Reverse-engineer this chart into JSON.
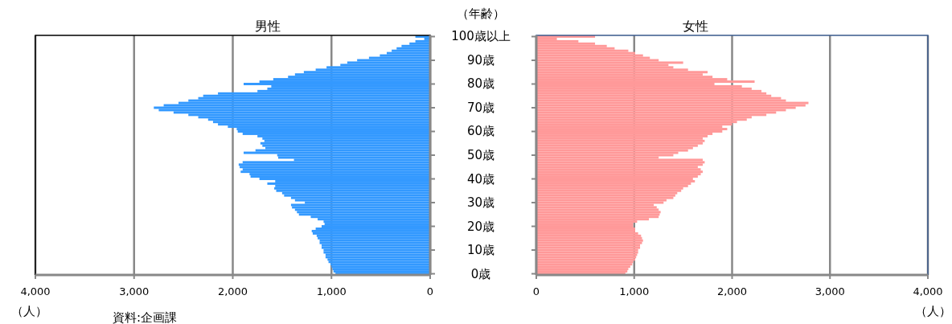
{
  "chart_data": [
    {
      "type": "bar",
      "orientation": "horizontal",
      "title": "男性",
      "ylabel": "（年齢）",
      "xlabel": "（人）",
      "color": "#3399ff",
      "grid": "x",
      "tick_labels": "xy",
      "xlim": [
        4000,
        0
      ],
      "xticks": [
        {
          "value": 4000,
          "label": "4,000"
        },
        {
          "value": 3000,
          "label": "3,000"
        },
        {
          "value": 2000,
          "label": "2,000"
        },
        {
          "value": 1000,
          "label": "1,000"
        },
        0
      ],
      "categories": [
        "100歳以上",
        null,
        null,
        null,
        null,
        null,
        null,
        null,
        null,
        null,
        "90歳",
        null,
        null,
        null,
        null,
        null,
        null,
        null,
        null,
        null,
        "80歳",
        null,
        null,
        null,
        null,
        null,
        null,
        null,
        null,
        null,
        "70歳",
        null,
        null,
        null,
        null,
        null,
        null,
        null,
        null,
        null,
        "60歳",
        null,
        null,
        null,
        null,
        null,
        null,
        null,
        null,
        null,
        "50歳",
        null,
        null,
        null,
        null,
        null,
        null,
        null,
        null,
        null,
        "40歳",
        null,
        null,
        null,
        null,
        null,
        null,
        null,
        null,
        null,
        "30歳",
        null,
        null,
        null,
        null,
        null,
        null,
        null,
        null,
        null,
        "20歳",
        null,
        null,
        null,
        null,
        null,
        null,
        null,
        null,
        null,
        "10歳",
        null,
        null,
        null,
        null,
        null,
        null,
        null,
        null,
        null,
        "0歳"
      ],
      "values": [
        150,
        60,
        150,
        210,
        290,
        340,
        390,
        440,
        510,
        620,
        740,
        840,
        910,
        1050,
        1160,
        1280,
        1370,
        1440,
        1590,
        1730,
        1890,
        1610,
        1650,
        1750,
        2150,
        2300,
        2350,
        2450,
        2550,
        2700,
        2800,
        2750,
        2600,
        2450,
        2350,
        2250,
        2200,
        2150,
        2050,
        1960,
        1950,
        1900,
        1750,
        1700,
        1680,
        1720,
        1700,
        1670,
        1770,
        1890,
        1550,
        1540,
        1380,
        1900,
        1940,
        1930,
        1900,
        1920,
        1830,
        1820,
        1730,
        1570,
        1650,
        1570,
        1580,
        1560,
        1500,
        1480,
        1410,
        1370,
        1270,
        1410,
        1400,
        1370,
        1350,
        1330,
        1210,
        1140,
        1080,
        1070,
        1100,
        1160,
        1200,
        1190,
        1150,
        1140,
        1120,
        1120,
        1100,
        1100,
        1080,
        1080,
        1060,
        1060,
        1040,
        1030,
        1010,
        1000,
        990,
        980,
        960
      ],
      "annotations": [
        "資料:企画課"
      ]
    },
    {
      "type": "bar",
      "orientation": "horizontal",
      "title": "女性",
      "xlabel": "（人）",
      "color": "#ff9999",
      "grid": "x",
      "tick_labels": "x",
      "xlim": [
        0,
        4000
      ],
      "xticks": [
        0,
        {
          "value": 1000,
          "label": "1,000"
        },
        {
          "value": 2000,
          "label": "2,000"
        },
        {
          "value": 3000,
          "label": "3,000"
        },
        {
          "value": 4000,
          "label": "4,000"
        }
      ],
      "categories": [
        "100歳以上",
        null,
        null,
        null,
        null,
        null,
        null,
        null,
        null,
        null,
        "90歳",
        null,
        null,
        null,
        null,
        null,
        null,
        null,
        null,
        null,
        "80歳",
        null,
        null,
        null,
        null,
        null,
        null,
        null,
        null,
        null,
        "70歳",
        null,
        null,
        null,
        null,
        null,
        null,
        null,
        null,
        null,
        "60歳",
        null,
        null,
        null,
        null,
        null,
        null,
        null,
        null,
        null,
        "50歳",
        null,
        null,
        null,
        null,
        null,
        null,
        null,
        null,
        null,
        "40歳",
        null,
        null,
        null,
        null,
        null,
        null,
        null,
        null,
        null,
        "30歳",
        null,
        null,
        null,
        null,
        null,
        null,
        null,
        null,
        null,
        "20歳",
        null,
        null,
        null,
        null,
        null,
        null,
        null,
        null,
        null,
        "10歳",
        null,
        null,
        null,
        null,
        null,
        null,
        null,
        null,
        null,
        "0歳"
      ],
      "values": [
        600,
        210,
        430,
        600,
        720,
        800,
        940,
        1010,
        1090,
        1160,
        1250,
        1500,
        1350,
        1400,
        1550,
        1750,
        1700,
        1800,
        1950,
        2230,
        1820,
        2100,
        2200,
        2300,
        2350,
        2400,
        2500,
        2550,
        2780,
        2750,
        2650,
        2550,
        2450,
        2350,
        2200,
        2150,
        2050,
        2000,
        1900,
        1950,
        1900,
        1800,
        1750,
        1700,
        1720,
        1700,
        1650,
        1600,
        1550,
        1450,
        1400,
        1250,
        1700,
        1720,
        1700,
        1650,
        1680,
        1700,
        1680,
        1650,
        1600,
        1620,
        1580,
        1550,
        1500,
        1480,
        1440,
        1420,
        1400,
        1330,
        1300,
        1200,
        1230,
        1250,
        1270,
        1260,
        1250,
        1150,
        1030,
        990,
        990,
        1010,
        1010,
        1040,
        1070,
        1080,
        1090,
        1080,
        1060,
        1060,
        1040,
        1040,
        1030,
        1020,
        1010,
        990,
        980,
        960,
        940,
        930,
        910
      ]
    }
  ]
}
